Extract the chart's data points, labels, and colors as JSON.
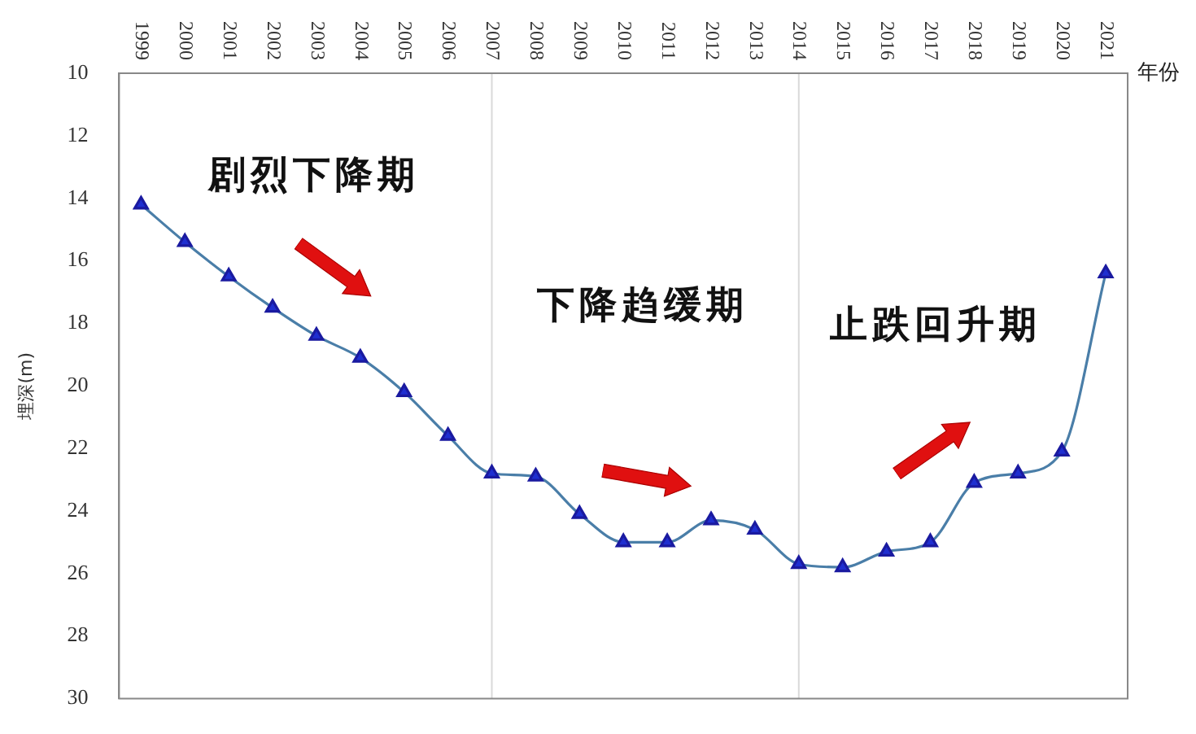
{
  "chart_data": {
    "type": "line",
    "xlabel": "年份",
    "ylabel": "埋深(m)",
    "categories": [
      "1999",
      "2000",
      "2001",
      "2002",
      "2003",
      "2004",
      "2005",
      "2006",
      "2007",
      "2008",
      "2009",
      "2010",
      "2011",
      "2012",
      "2013",
      "2014",
      "2015",
      "2016",
      "2017",
      "2018",
      "2019",
      "2020",
      "2021"
    ],
    "series": [
      {
        "color": "#4a7ea8",
        "values": [
          14.2,
          15.4,
          16.5,
          17.5,
          18.4,
          19.1,
          20.2,
          21.6,
          22.8,
          22.9,
          24.1,
          25.0,
          25.0,
          24.3,
          24.6,
          25.7,
          25.8,
          25.3,
          25.0,
          23.1,
          22.8,
          22.1,
          16.4
        ]
      }
    ],
    "ylim": [
      30,
      10
    ],
    "yticks": [
      10,
      12,
      14,
      16,
      18,
      20,
      22,
      24,
      26,
      28,
      30
    ],
    "ref_lines": [
      {
        "axis": "x",
        "value": "2007",
        "color": "#d9d9d9"
      },
      {
        "axis": "x",
        "value": "2014",
        "color": "#d9d9d9"
      }
    ],
    "annotations": [
      "剧烈下降期",
      "下降趋缓期",
      "止跌回升期"
    ],
    "grid": false,
    "legend": false,
    "marker": "triangle",
    "line_style": "solid"
  }
}
